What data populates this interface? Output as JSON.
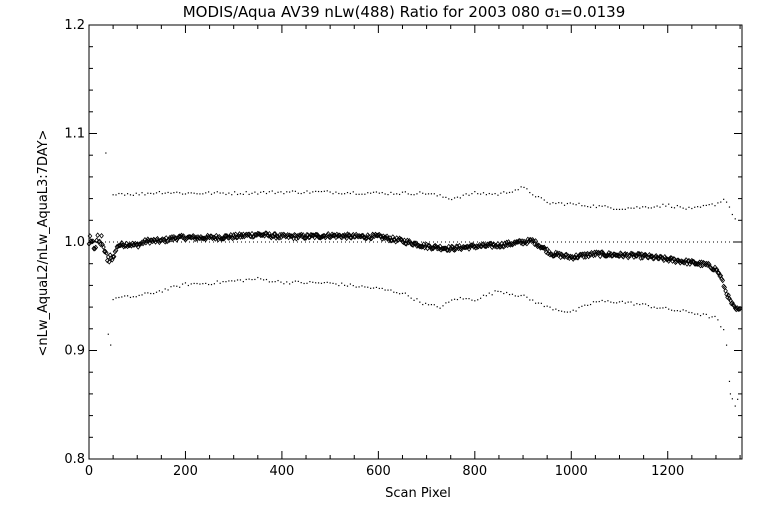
{
  "chart_data": {
    "type": "scatter",
    "title": "MODIS/Aqua AV39 nLw(488) Ratio for 2003 080 σ₁=0.0139",
    "xlabel": "Scan Pixel",
    "ylabel": "<nLw_AquaL2/nLw_AquaL3:7DAY>",
    "xlim": [
      0,
      1354
    ],
    "ylim": [
      0.8,
      1.2
    ],
    "x_ticks": [
      0,
      200,
      400,
      600,
      800,
      1000,
      1200
    ],
    "x_tick_labels": [
      "0",
      "200",
      "400",
      "600",
      "800",
      "1000",
      "1200"
    ],
    "y_ticks": [
      0.8,
      0.9,
      1.0,
      1.1,
      1.2
    ],
    "y_tick_labels": [
      "0.8",
      "0.9",
      "1.0",
      "1.1",
      "1.2"
    ],
    "reference_line": 1.0,
    "series": [
      {
        "role": "mean",
        "marker": "diamond",
        "points": [
          [
            0,
            1.0
          ],
          [
            10,
            0.995
          ],
          [
            20,
            1.002
          ],
          [
            30,
            0.998
          ],
          [
            40,
            0.982
          ],
          [
            50,
            0.986
          ],
          [
            60,
            0.997
          ],
          [
            80,
            0.998
          ],
          [
            100,
            0.997
          ],
          [
            120,
            1.001
          ],
          [
            150,
            1.001
          ],
          [
            180,
            1.004
          ],
          [
            200,
            1.004
          ],
          [
            250,
            1.004
          ],
          [
            300,
            1.005
          ],
          [
            350,
            1.007
          ],
          [
            400,
            1.005
          ],
          [
            450,
            1.005
          ],
          [
            500,
            1.006
          ],
          [
            550,
            1.005
          ],
          [
            600,
            1.005
          ],
          [
            650,
            1.001
          ],
          [
            700,
            0.996
          ],
          [
            750,
            0.994
          ],
          [
            800,
            0.996
          ],
          [
            850,
            0.997
          ],
          [
            900,
            1.0
          ],
          [
            920,
            1.001
          ],
          [
            940,
            0.995
          ],
          [
            960,
            0.989
          ],
          [
            1000,
            0.986
          ],
          [
            1050,
            0.989
          ],
          [
            1100,
            0.988
          ],
          [
            1150,
            0.987
          ],
          [
            1200,
            0.984
          ],
          [
            1250,
            0.981
          ],
          [
            1280,
            0.979
          ],
          [
            1300,
            0.975
          ],
          [
            1310,
            0.968
          ],
          [
            1320,
            0.955
          ],
          [
            1330,
            0.945
          ],
          [
            1340,
            0.938
          ],
          [
            1350,
            0.937
          ]
        ]
      },
      {
        "role": "upper-bound",
        "marker": "dot",
        "points": [
          [
            50,
            1.045
          ],
          [
            100,
            1.044
          ],
          [
            150,
            1.046
          ],
          [
            200,
            1.045
          ],
          [
            300,
            1.045
          ],
          [
            400,
            1.046
          ],
          [
            500,
            1.046
          ],
          [
            600,
            1.045
          ],
          [
            700,
            1.045
          ],
          [
            750,
            1.04
          ],
          [
            800,
            1.045
          ],
          [
            850,
            1.044
          ],
          [
            900,
            1.05
          ],
          [
            950,
            1.036
          ],
          [
            1000,
            1.035
          ],
          [
            1100,
            1.031
          ],
          [
            1150,
            1.032
          ],
          [
            1200,
            1.034
          ],
          [
            1250,
            1.03
          ],
          [
            1300,
            1.035
          ],
          [
            1320,
            1.04
          ],
          [
            1340,
            1.02
          ]
        ]
      },
      {
        "role": "lower-bound",
        "marker": "dot",
        "points": [
          [
            50,
            0.948
          ],
          [
            100,
            0.95
          ],
          [
            150,
            0.955
          ],
          [
            200,
            0.961
          ],
          [
            250,
            0.962
          ],
          [
            300,
            0.964
          ],
          [
            350,
            0.966
          ],
          [
            400,
            0.963
          ],
          [
            500,
            0.962
          ],
          [
            600,
            0.957
          ],
          [
            650,
            0.953
          ],
          [
            700,
            0.942
          ],
          [
            730,
            0.94
          ],
          [
            760,
            0.948
          ],
          [
            800,
            0.947
          ],
          [
            850,
            0.955
          ],
          [
            900,
            0.95
          ],
          [
            950,
            0.94
          ],
          [
            1000,
            0.935
          ],
          [
            1050,
            0.945
          ],
          [
            1100,
            0.945
          ],
          [
            1150,
            0.942
          ],
          [
            1200,
            0.938
          ],
          [
            1250,
            0.935
          ],
          [
            1300,
            0.93
          ],
          [
            1320,
            0.915
          ],
          [
            1330,
            0.86
          ],
          [
            1340,
            0.85
          ]
        ]
      }
    ]
  }
}
